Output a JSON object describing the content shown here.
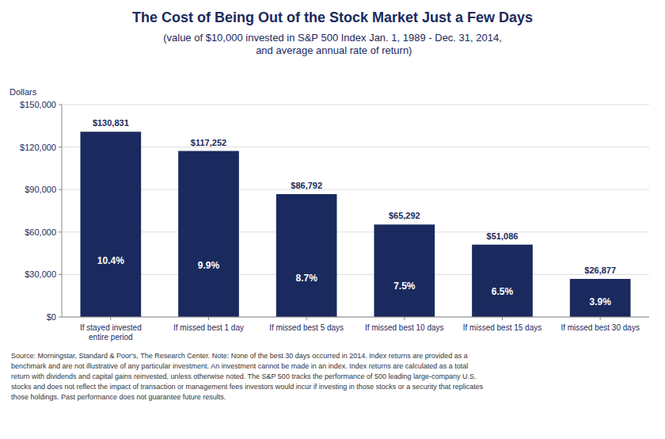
{
  "chart_data": {
    "type": "bar",
    "title": "The Cost of Being Out of the Stock Market Just a Few Days",
    "subtitle": "(value of $10,000 invested in S&P 500 Index Jan. 1, 1989 - Dec. 31, 2014,\n and average annual rate of return)",
    "y_label": "Dollars",
    "categories": [
      "If stayed invested\nentire period",
      "If missed best 1 day",
      "If missed best 5 days",
      "If missed best 10 days",
      "If missed best 15 days",
      "If missed best 30 days"
    ],
    "values": [
      130831,
      117252,
      86792,
      65292,
      51086,
      26877
    ],
    "value_labels": [
      "$130,831",
      "$117,252",
      "$86,792",
      "$65,292",
      "$51,086",
      "$26,877"
    ],
    "data_labels": true,
    "annotations": [
      "10.4%",
      "9.9%",
      "8.7%",
      "7.5%",
      "6.5%",
      "3.9%"
    ],
    "color": "#1a2a5e",
    "ylim": [
      0,
      150000
    ],
    "yticks": [
      {
        "value": 0,
        "label": "$0"
      },
      {
        "value": 30000,
        "label": "$30,000"
      },
      {
        "value": 60000,
        "label": "$60,000"
      },
      {
        "value": 90000,
        "label": "$90,000"
      },
      {
        "value": 120000,
        "label": "$120,000"
      },
      {
        "value": 150000,
        "label": "$150,000"
      }
    ],
    "grid": true,
    "source": "Source:  Morningstar, Standard & Poor's, The Research Center. Note: None of the best 30 days occurred in 2014. Index returns are provided as a\nbenchmark and are not illustrative of any particular investment. An investment cannot be made in an index. Index returns are calculated as a total\nreturn with dividends and capital gains reinvested, unless otherwise noted. The S&P 500 tracks the performance of 500 leading large-company U.S.\nstocks and does not reflect the impact of transaction or management fees investors would incur if investing in those stocks or a security that replicates\nthose holdings. Past performance does not guarantee future results."
  }
}
